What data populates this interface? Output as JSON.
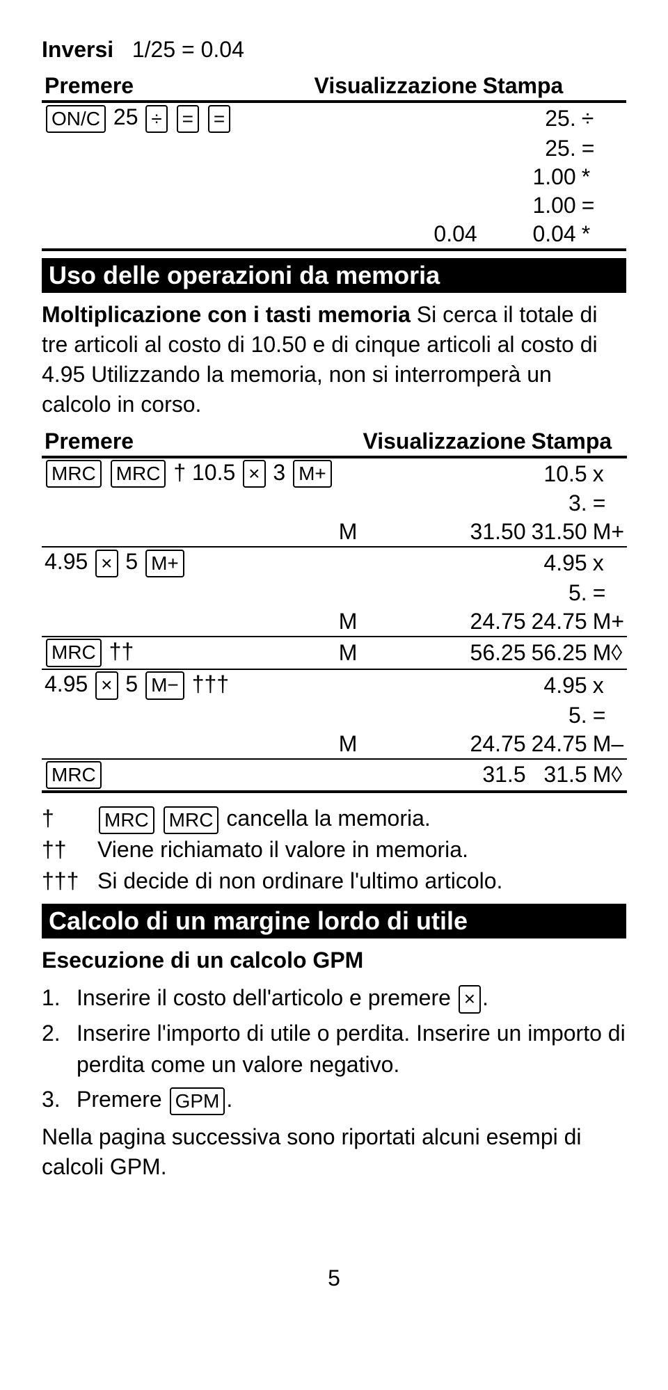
{
  "inversi": {
    "label": "Inversi",
    "formula": "1/25 = 0.04",
    "header": {
      "press": "Premere",
      "disp": "Visualizzazione",
      "print": "Stampa"
    },
    "rows": [
      {
        "press": {
          "keys": [
            "ON/C"
          ],
          "text": "25",
          "keys2": [
            "÷",
            "=",
            "="
          ]
        },
        "m": "",
        "disp": "",
        "prnum": "25.",
        "prsym": "÷"
      },
      {
        "press": null,
        "m": "",
        "disp": "",
        "prnum": "25.",
        "prsym": "="
      },
      {
        "press": null,
        "m": "",
        "disp": "",
        "prnum": "1.00",
        "prsym": "*"
      },
      {
        "press": null,
        "m": "",
        "disp": "",
        "prnum": "1.00",
        "prsym": "="
      },
      {
        "press": null,
        "m": "",
        "disp": "0.04",
        "prnum": "0.04",
        "prsym": "*"
      }
    ]
  },
  "memoria": {
    "title": "Uso delle operazioni da memoria",
    "intro_bold": "Moltiplicazione con i tasti memoria",
    "intro_rest": " Si cerca il totale di tre articoli al costo di 10.50 e di cinque articoli al costo di 4.95 Utilizzando la memoria, non si interromperà un calcolo in corso.",
    "header": {
      "press": "Premere",
      "disp": "Visualizzazione",
      "print": "Stampa"
    },
    "rows": [
      {
        "press": {
          "keys": [
            "MRC",
            "MRC"
          ],
          "text": "† 10.5",
          "keys2": [
            "×"
          ],
          "text2": "3",
          "keys3": [
            "M+"
          ]
        },
        "m": "",
        "disp": "",
        "prnum": "10.5",
        "prsym": "x",
        "tl": true
      },
      {
        "press": null,
        "m": "",
        "disp": "",
        "prnum": "3.",
        "prsym": "="
      },
      {
        "press": null,
        "m": "M",
        "disp": "31.50",
        "prnum": "31.50",
        "prsym": "M+"
      },
      {
        "press": {
          "text0": "4.95",
          "keys": [
            "×"
          ],
          "text": "5",
          "keys2": [
            "M+"
          ]
        },
        "m": "",
        "disp": "",
        "prnum": "4.95",
        "prsym": "x",
        "tl": "thin"
      },
      {
        "press": null,
        "m": "",
        "disp": "",
        "prnum": "5.",
        "prsym": "="
      },
      {
        "press": null,
        "m": "M",
        "disp": "24.75",
        "prnum": "24.75",
        "prsym": "M+"
      },
      {
        "press": {
          "keys": [
            "MRC"
          ],
          "text": "††"
        },
        "m": "M",
        "disp": "56.25",
        "prnum": "56.25",
        "prsym": "M◊",
        "tl": "thin"
      },
      {
        "press": {
          "text0": "4.95",
          "keys": [
            "×"
          ],
          "text": "5",
          "keys2": [
            "M−"
          ],
          "text2": "†††"
        },
        "m": "",
        "disp": "",
        "prnum": "4.95",
        "prsym": "x",
        "tl": "thin"
      },
      {
        "press": null,
        "m": "",
        "disp": "",
        "prnum": "5.",
        "prsym": "="
      },
      {
        "press": null,
        "m": "M",
        "disp": "24.75",
        "prnum": "24.75",
        "prsym": "M–"
      },
      {
        "press": {
          "keys": [
            "MRC"
          ]
        },
        "m": "",
        "disp": "31.5",
        "prnum": "31.5",
        "prsym": "M◊",
        "tl": "thin",
        "bl": true
      }
    ],
    "notes": [
      {
        "dag": "†",
        "keys": [
          "MRC",
          "MRC"
        ],
        "text": " cancella la memoria."
      },
      {
        "dag": "††",
        "text": "Viene richiamato il valore in memoria."
      },
      {
        "dag": "†††",
        "text": "Si decide di non ordinare l'ultimo articolo."
      }
    ]
  },
  "gpm": {
    "title": "Calcolo di un margine lordo di utile",
    "subtitle": "Esecuzione di un calcolo GPM",
    "steps": [
      {
        "n": "1.",
        "pre": "Inserire il costo dell'articolo e premere ",
        "key": "×",
        "post": "."
      },
      {
        "n": "2.",
        "pre": "Inserire l'importo di utile o perdita. Inserire un importo di perdita come un valore negativo."
      },
      {
        "n": "3.",
        "pre": "Premere ",
        "key": "GPM",
        "post": "."
      }
    ],
    "closing": "Nella pagina successiva sono riportati alcuni esempi di calcoli GPM."
  },
  "pagenum": "5"
}
